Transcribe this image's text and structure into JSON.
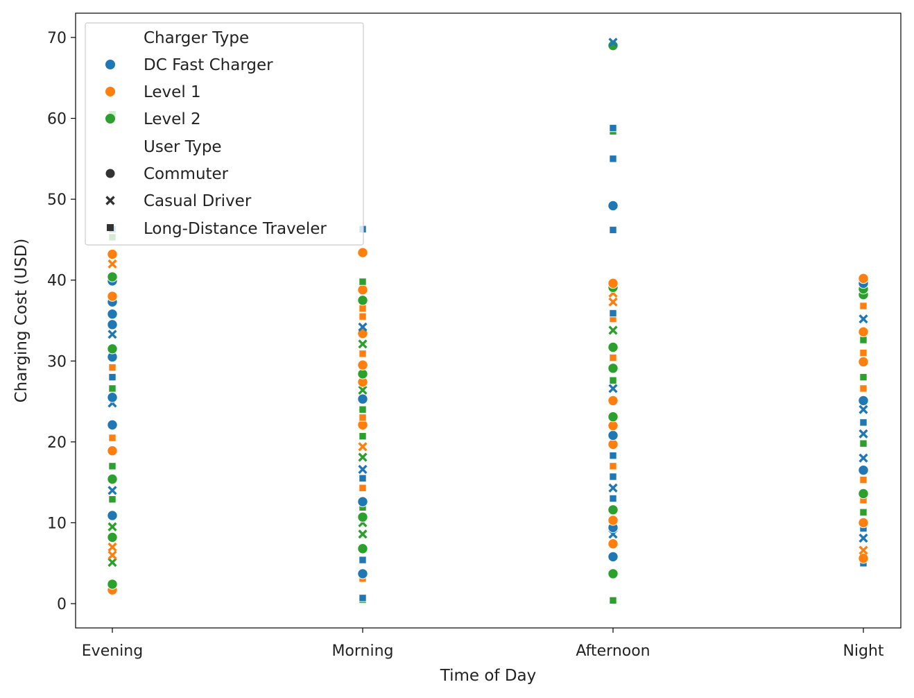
{
  "chart_data": {
    "type": "scatter",
    "title": "",
    "xlabel": "Time of Day",
    "ylabel": "Charging Cost (USD)",
    "categories": [
      "Evening",
      "Morning",
      "Afternoon",
      "Night"
    ],
    "ylim": [
      -3,
      73
    ],
    "yticks": [
      0,
      10,
      20,
      30,
      40,
      50,
      60,
      70
    ],
    "grid": false,
    "legend": {
      "placement": "top-left",
      "hue_title": "Charger Type",
      "hue_entries": [
        {
          "label": "DC Fast Charger",
          "color": "#1f77b4"
        },
        {
          "label": "Level 1",
          "color": "#ff7f0e"
        },
        {
          "label": "Level 2",
          "color": "#2ca02c"
        }
      ],
      "style_title": "User Type",
      "style_entries": [
        {
          "label": "Commuter",
          "marker": "circle"
        },
        {
          "label": "Casual Driver",
          "marker": "x"
        },
        {
          "label": "Long-Distance Traveler",
          "marker": "square"
        }
      ]
    },
    "series": [
      {
        "category": "Evening",
        "points": [
          {
            "y": 1.7,
            "charger": "Level 1",
            "user": "Commuter"
          },
          {
            "y": 2.4,
            "charger": "Level 2",
            "user": "Commuter"
          },
          {
            "y": 5.1,
            "charger": "Level 2",
            "user": "Casual Driver"
          },
          {
            "y": 6.0,
            "charger": "Level 1",
            "user": "Casual Driver"
          },
          {
            "y": 7.0,
            "charger": "Level 1",
            "user": "Casual Driver"
          },
          {
            "y": 8.2,
            "charger": "Level 2",
            "user": "Commuter"
          },
          {
            "y": 9.5,
            "charger": "Level 2",
            "user": "Casual Driver"
          },
          {
            "y": 10.9,
            "charger": "DC Fast Charger",
            "user": "Commuter"
          },
          {
            "y": 12.9,
            "charger": "Level 2",
            "user": "Long-Distance Traveler"
          },
          {
            "y": 14.0,
            "charger": "DC Fast Charger",
            "user": "Casual Driver"
          },
          {
            "y": 15.4,
            "charger": "Level 2",
            "user": "Commuter"
          },
          {
            "y": 17.0,
            "charger": "Level 2",
            "user": "Long-Distance Traveler"
          },
          {
            "y": 18.9,
            "charger": "Level 1",
            "user": "Commuter"
          },
          {
            "y": 20.5,
            "charger": "Level 1",
            "user": "Long-Distance Traveler"
          },
          {
            "y": 22.1,
            "charger": "DC Fast Charger",
            "user": "Commuter"
          },
          {
            "y": 24.8,
            "charger": "DC Fast Charger",
            "user": "Casual Driver"
          },
          {
            "y": 25.5,
            "charger": "DC Fast Charger",
            "user": "Commuter"
          },
          {
            "y": 26.6,
            "charger": "Level 2",
            "user": "Long-Distance Traveler"
          },
          {
            "y": 28.0,
            "charger": "DC Fast Charger",
            "user": "Long-Distance Traveler"
          },
          {
            "y": 29.2,
            "charger": "Level 1",
            "user": "Long-Distance Traveler"
          },
          {
            "y": 30.5,
            "charger": "DC Fast Charger",
            "user": "Commuter"
          },
          {
            "y": 31.5,
            "charger": "Level 2",
            "user": "Commuter"
          },
          {
            "y": 33.3,
            "charger": "DC Fast Charger",
            "user": "Casual Driver"
          },
          {
            "y": 34.5,
            "charger": "DC Fast Charger",
            "user": "Commuter"
          },
          {
            "y": 35.8,
            "charger": "DC Fast Charger",
            "user": "Commuter"
          },
          {
            "y": 37.3,
            "charger": "DC Fast Charger",
            "user": "Commuter"
          },
          {
            "y": 38.0,
            "charger": "Level 1",
            "user": "Commuter"
          },
          {
            "y": 39.9,
            "charger": "DC Fast Charger",
            "user": "Commuter"
          },
          {
            "y": 40.4,
            "charger": "Level 2",
            "user": "Commuter"
          },
          {
            "y": 42.0,
            "charger": "Level 1",
            "user": "Casual Driver"
          },
          {
            "y": 43.2,
            "charger": "Level 1",
            "user": "Commuter"
          },
          {
            "y": 45.3,
            "charger": "Level 2",
            "user": "Long-Distance Traveler"
          },
          {
            "y": 46.3,
            "charger": "DC Fast Charger",
            "user": "Long-Distance Traveler"
          },
          {
            "y": 60.5,
            "charger": "Level 2",
            "user": "Long-Distance Traveler"
          }
        ]
      },
      {
        "category": "Morning",
        "points": [
          {
            "y": 0.5,
            "charger": "Level 2",
            "user": "Long-Distance Traveler"
          },
          {
            "y": 0.7,
            "charger": "DC Fast Charger",
            "user": "Long-Distance Traveler"
          },
          {
            "y": 3.1,
            "charger": "Level 1",
            "user": "Long-Distance Traveler"
          },
          {
            "y": 3.7,
            "charger": "DC Fast Charger",
            "user": "Commuter"
          },
          {
            "y": 5.4,
            "charger": "DC Fast Charger",
            "user": "Long-Distance Traveler"
          },
          {
            "y": 6.8,
            "charger": "Level 2",
            "user": "Commuter"
          },
          {
            "y": 8.6,
            "charger": "Level 2",
            "user": "Casual Driver"
          },
          {
            "y": 10.0,
            "charger": "Level 2",
            "user": "Casual Driver"
          },
          {
            "y": 10.7,
            "charger": "Level 2",
            "user": "Commuter"
          },
          {
            "y": 11.9,
            "charger": "Level 2",
            "user": "Long-Distance Traveler"
          },
          {
            "y": 12.6,
            "charger": "DC Fast Charger",
            "user": "Commuter"
          },
          {
            "y": 14.3,
            "charger": "Level 1",
            "user": "Long-Distance Traveler"
          },
          {
            "y": 15.5,
            "charger": "DC Fast Charger",
            "user": "Long-Distance Traveler"
          },
          {
            "y": 16.6,
            "charger": "DC Fast Charger",
            "user": "Casual Driver"
          },
          {
            "y": 18.1,
            "charger": "Level 2",
            "user": "Casual Driver"
          },
          {
            "y": 19.4,
            "charger": "Level 1",
            "user": "Casual Driver"
          },
          {
            "y": 20.7,
            "charger": "Level 2",
            "user": "Long-Distance Traveler"
          },
          {
            "y": 22.1,
            "charger": "Level 1",
            "user": "Commuter"
          },
          {
            "y": 23.0,
            "charger": "Level 1",
            "user": "Long-Distance Traveler"
          },
          {
            "y": 24.0,
            "charger": "Level 2",
            "user": "Long-Distance Traveler"
          },
          {
            "y": 25.3,
            "charger": "DC Fast Charger",
            "user": "Commuter"
          },
          {
            "y": 26.4,
            "charger": "Level 2",
            "user": "Casual Driver"
          },
          {
            "y": 27.4,
            "charger": "Level 1",
            "user": "Commuter"
          },
          {
            "y": 28.4,
            "charger": "Level 2",
            "user": "Commuter"
          },
          {
            "y": 29.5,
            "charger": "Level 1",
            "user": "Commuter"
          },
          {
            "y": 30.9,
            "charger": "Level 1",
            "user": "Long-Distance Traveler"
          },
          {
            "y": 32.1,
            "charger": "Level 2",
            "user": "Casual Driver"
          },
          {
            "y": 33.4,
            "charger": "Level 1",
            "user": "Commuter"
          },
          {
            "y": 34.2,
            "charger": "DC Fast Charger",
            "user": "Casual Driver"
          },
          {
            "y": 35.5,
            "charger": "Level 1",
            "user": "Long-Distance Traveler"
          },
          {
            "y": 36.5,
            "charger": "Level 1",
            "user": "Long-Distance Traveler"
          },
          {
            "y": 37.5,
            "charger": "Level 2",
            "user": "Commuter"
          },
          {
            "y": 38.8,
            "charger": "Level 1",
            "user": "Commuter"
          },
          {
            "y": 39.8,
            "charger": "Level 2",
            "user": "Long-Distance Traveler"
          },
          {
            "y": 43.4,
            "charger": "Level 1",
            "user": "Commuter"
          },
          {
            "y": 46.3,
            "charger": "DC Fast Charger",
            "user": "Long-Distance Traveler"
          }
        ]
      },
      {
        "category": "Afternoon",
        "points": [
          {
            "y": 0.4,
            "charger": "Level 2",
            "user": "Long-Distance Traveler"
          },
          {
            "y": 3.7,
            "charger": "Level 2",
            "user": "Commuter"
          },
          {
            "y": 5.8,
            "charger": "DC Fast Charger",
            "user": "Commuter"
          },
          {
            "y": 7.4,
            "charger": "Level 1",
            "user": "Commuter"
          },
          {
            "y": 8.6,
            "charger": "DC Fast Charger",
            "user": "Casual Driver"
          },
          {
            "y": 9.4,
            "charger": "DC Fast Charger",
            "user": "Commuter"
          },
          {
            "y": 10.3,
            "charger": "Level 1",
            "user": "Commuter"
          },
          {
            "y": 11.6,
            "charger": "Level 2",
            "user": "Commuter"
          },
          {
            "y": 13.0,
            "charger": "DC Fast Charger",
            "user": "Long-Distance Traveler"
          },
          {
            "y": 14.3,
            "charger": "DC Fast Charger",
            "user": "Casual Driver"
          },
          {
            "y": 15.7,
            "charger": "DC Fast Charger",
            "user": "Long-Distance Traveler"
          },
          {
            "y": 17.0,
            "charger": "Level 1",
            "user": "Long-Distance Traveler"
          },
          {
            "y": 18.3,
            "charger": "DC Fast Charger",
            "user": "Long-Distance Traveler"
          },
          {
            "y": 19.7,
            "charger": "Level 1",
            "user": "Commuter"
          },
          {
            "y": 20.8,
            "charger": "DC Fast Charger",
            "user": "Commuter"
          },
          {
            "y": 22.0,
            "charger": "Level 1",
            "user": "Commuter"
          },
          {
            "y": 23.1,
            "charger": "Level 2",
            "user": "Commuter"
          },
          {
            "y": 25.1,
            "charger": "Level 1",
            "user": "Commuter"
          },
          {
            "y": 26.6,
            "charger": "DC Fast Charger",
            "user": "Casual Driver"
          },
          {
            "y": 27.6,
            "charger": "Level 2",
            "user": "Long-Distance Traveler"
          },
          {
            "y": 29.1,
            "charger": "Level 2",
            "user": "Commuter"
          },
          {
            "y": 30.4,
            "charger": "Level 1",
            "user": "Long-Distance Traveler"
          },
          {
            "y": 31.7,
            "charger": "Level 2",
            "user": "Commuter"
          },
          {
            "y": 33.8,
            "charger": "Level 2",
            "user": "Casual Driver"
          },
          {
            "y": 35.2,
            "charger": "Level 1",
            "user": "Long-Distance Traveler"
          },
          {
            "y": 35.9,
            "charger": "DC Fast Charger",
            "user": "Long-Distance Traveler"
          },
          {
            "y": 37.3,
            "charger": "Level 1",
            "user": "Casual Driver"
          },
          {
            "y": 38.4,
            "charger": "Level 1",
            "user": "Casual Driver"
          },
          {
            "y": 39.1,
            "charger": "Level 2",
            "user": "Commuter"
          },
          {
            "y": 39.6,
            "charger": "Level 1",
            "user": "Commuter"
          },
          {
            "y": 46.2,
            "charger": "DC Fast Charger",
            "user": "Long-Distance Traveler"
          },
          {
            "y": 49.2,
            "charger": "DC Fast Charger",
            "user": "Commuter"
          },
          {
            "y": 55.0,
            "charger": "DC Fast Charger",
            "user": "Long-Distance Traveler"
          },
          {
            "y": 58.4,
            "charger": "Level 2",
            "user": "Long-Distance Traveler"
          },
          {
            "y": 58.8,
            "charger": "DC Fast Charger",
            "user": "Long-Distance Traveler"
          },
          {
            "y": 69.0,
            "charger": "Level 2",
            "user": "Commuter"
          },
          {
            "y": 69.4,
            "charger": "DC Fast Charger",
            "user": "Casual Driver"
          }
        ]
      },
      {
        "category": "Night",
        "points": [
          {
            "y": 5.0,
            "charger": "DC Fast Charger",
            "user": "Long-Distance Traveler"
          },
          {
            "y": 5.6,
            "charger": "Level 1",
            "user": "Commuter"
          },
          {
            "y": 6.6,
            "charger": "Level 1",
            "user": "Casual Driver"
          },
          {
            "y": 8.1,
            "charger": "DC Fast Charger",
            "user": "Casual Driver"
          },
          {
            "y": 9.3,
            "charger": "DC Fast Charger",
            "user": "Long-Distance Traveler"
          },
          {
            "y": 10.0,
            "charger": "Level 1",
            "user": "Commuter"
          },
          {
            "y": 11.3,
            "charger": "Level 2",
            "user": "Long-Distance Traveler"
          },
          {
            "y": 12.8,
            "charger": "Level 1",
            "user": "Long-Distance Traveler"
          },
          {
            "y": 13.6,
            "charger": "Level 2",
            "user": "Commuter"
          },
          {
            "y": 15.3,
            "charger": "Level 1",
            "user": "Long-Distance Traveler"
          },
          {
            "y": 16.5,
            "charger": "DC Fast Charger",
            "user": "Commuter"
          },
          {
            "y": 18.0,
            "charger": "DC Fast Charger",
            "user": "Casual Driver"
          },
          {
            "y": 19.8,
            "charger": "Level 2",
            "user": "Long-Distance Traveler"
          },
          {
            "y": 21.0,
            "charger": "DC Fast Charger",
            "user": "Casual Driver"
          },
          {
            "y": 22.4,
            "charger": "DC Fast Charger",
            "user": "Long-Distance Traveler"
          },
          {
            "y": 24.0,
            "charger": "DC Fast Charger",
            "user": "Casual Driver"
          },
          {
            "y": 25.1,
            "charger": "DC Fast Charger",
            "user": "Commuter"
          },
          {
            "y": 26.6,
            "charger": "Level 1",
            "user": "Long-Distance Traveler"
          },
          {
            "y": 28.0,
            "charger": "Level 2",
            "user": "Long-Distance Traveler"
          },
          {
            "y": 29.9,
            "charger": "Level 1",
            "user": "Commuter"
          },
          {
            "y": 31.0,
            "charger": "Level 1",
            "user": "Long-Distance Traveler"
          },
          {
            "y": 32.6,
            "charger": "Level 2",
            "user": "Long-Distance Traveler"
          },
          {
            "y": 33.6,
            "charger": "Level 1",
            "user": "Commuter"
          },
          {
            "y": 35.2,
            "charger": "DC Fast Charger",
            "user": "Casual Driver"
          },
          {
            "y": 36.8,
            "charger": "Level 1",
            "user": "Long-Distance Traveler"
          },
          {
            "y": 38.2,
            "charger": "Level 2",
            "user": "Commuter"
          },
          {
            "y": 38.9,
            "charger": "Level 2",
            "user": "Commuter"
          },
          {
            "y": 39.6,
            "charger": "DC Fast Charger",
            "user": "Commuter"
          },
          {
            "y": 40.2,
            "charger": "Level 1",
            "user": "Commuter"
          }
        ]
      }
    ]
  }
}
